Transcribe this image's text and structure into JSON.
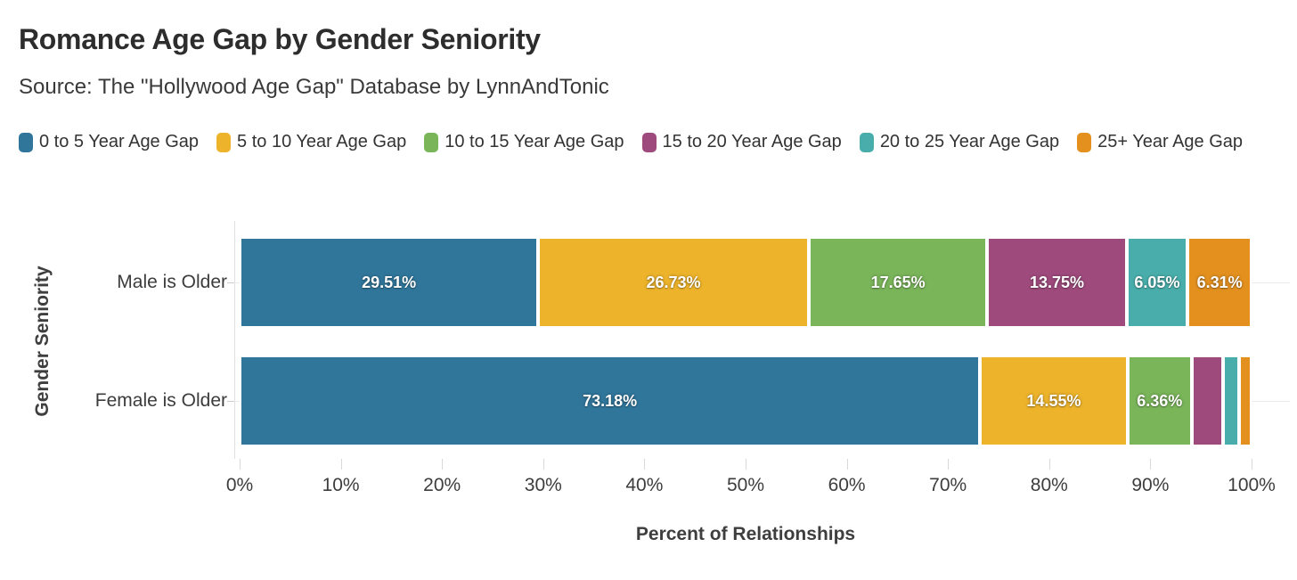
{
  "header": {
    "title": "Romance Age Gap by Gender Seniority",
    "subtitle": "Source: The \"Hollywood Age Gap\" Database by LynnAndTonic"
  },
  "chart_data": {
    "type": "bar",
    "stacked": true,
    "orientation": "horizontal",
    "title": "Romance Age Gap by Gender Seniority",
    "subtitle": "Source: The \"Hollywood Age Gap\" Database by LynnAndTonic",
    "xlabel": "Percent of Relationships",
    "ylabel": "Gender Seniority",
    "categories": [
      "Male is Older",
      "Female is Older"
    ],
    "series": [
      {
        "name": "0 to 5 Year Age Gap",
        "color": "#30769b",
        "values": [
          29.51,
          73.18
        ],
        "labels": [
          "29.51%",
          "73.18%"
        ]
      },
      {
        "name": "5 to 10 Year Age Gap",
        "color": "#edb32b",
        "values": [
          26.73,
          14.55
        ],
        "labels": [
          "26.73%",
          "14.55%"
        ]
      },
      {
        "name": "10 to 15 Year Age Gap",
        "color": "#7ab55a",
        "values": [
          17.65,
          6.36
        ],
        "labels": [
          "17.65%",
          "6.36%"
        ]
      },
      {
        "name": "15 to 20 Year Age Gap",
        "color": "#9e4a7c",
        "values": [
          13.75,
          3.09
        ],
        "labels": [
          "13.75%",
          ""
        ]
      },
      {
        "name": "20 to 25 Year Age Gap",
        "color": "#49aeab",
        "values": [
          6.05,
          1.55
        ],
        "labels": [
          "6.05%",
          ""
        ]
      },
      {
        "name": "25+ Year Age Gap",
        "color": "#e3901f",
        "values": [
          6.31,
          1.27
        ],
        "labels": [
          "6.31%",
          ""
        ]
      }
    ],
    "x_ticks": [
      "0%",
      "10%",
      "20%",
      "30%",
      "40%",
      "50%",
      "60%",
      "70%",
      "80%",
      "90%",
      "100%"
    ],
    "xlim": [
      0,
      100
    ],
    "grid": "horizontal-category-lines",
    "legend_position": "top",
    "bar_label_color": "#ffffff"
  }
}
